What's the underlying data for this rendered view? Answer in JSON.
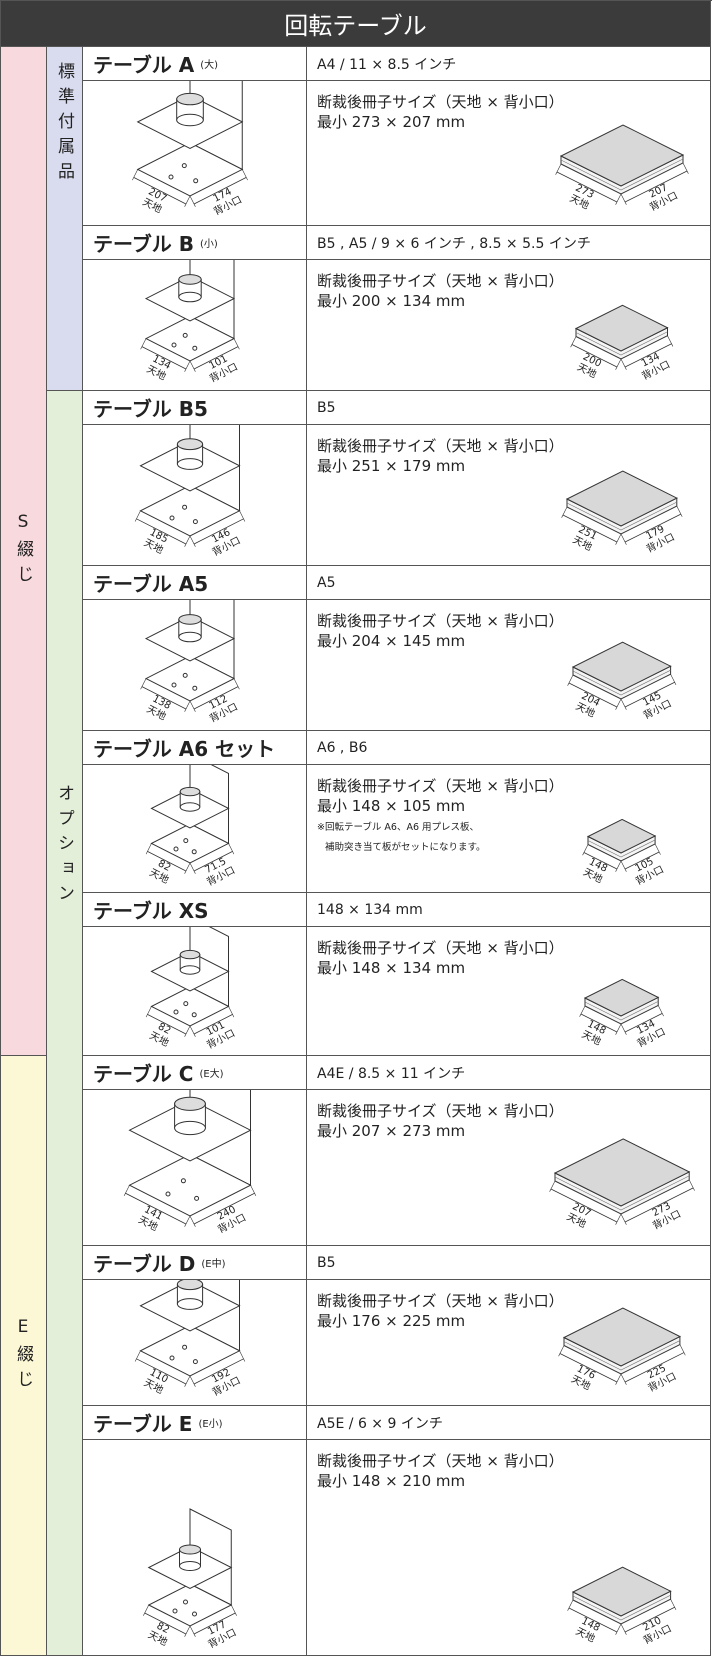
{
  "header": {
    "title": "回転テーブル"
  },
  "groups": [
    {
      "label": "S綴じ"
    },
    {
      "label": "E綴じ"
    }
  ],
  "subgroups": [
    {
      "label": "標準付属品"
    },
    {
      "label": "オプション"
    }
  ],
  "trim_title": "断裁後冊子サイズ（天地 × 背小口）",
  "dim_labels": {
    "height": "天地",
    "width": "背小口"
  },
  "items": [
    {
      "name": "テーブル A",
      "size_note": "(大)",
      "spec": "A4 / 11 × 8.5 インチ",
      "trim_size": "最小 273 × 207 mm",
      "table_dims": [
        207,
        174
      ],
      "book_dims": [
        273,
        207
      ]
    },
    {
      "name": "テーブル B",
      "size_note": "(小)",
      "spec": "B5 , A5 / 9 × 6 インチ , 8.5 × 5.5 インチ",
      "trim_size": "最小 200 × 134 mm",
      "table_dims": [
        134,
        101
      ],
      "book_dims": [
        200,
        134
      ]
    },
    {
      "name": "テーブル B5",
      "spec": "B5",
      "trim_size": "最小 251 × 179 mm",
      "table_dims": [
        185,
        146
      ],
      "book_dims": [
        251,
        179
      ]
    },
    {
      "name": "テーブル A5",
      "spec": "A5",
      "trim_size": "最小 204 × 145 mm",
      "table_dims": [
        138,
        112
      ],
      "book_dims": [
        204,
        145
      ]
    },
    {
      "name": "テーブル A6 セット",
      "spec": "A6 , B6",
      "trim_size": "最小 148 × 105 mm",
      "notes": [
        "※回転テーブル A6、A6 用プレス板、",
        "補助突き当て板がセットになります。"
      ],
      "table_dims": [
        82,
        71.5
      ],
      "book_dims": [
        148,
        105
      ]
    },
    {
      "name": "テーブル XS",
      "spec": "148 × 134 mm",
      "trim_size": "最小 148 × 134 mm",
      "table_dims": [
        82,
        101
      ],
      "book_dims": [
        148,
        134
      ]
    },
    {
      "name": "テーブル C",
      "size_note": "(E大)",
      "spec": "A4E / 8.5 × 11 インチ",
      "trim_size": "最小 207 × 273 mm",
      "table_dims": [
        141,
        240
      ],
      "book_dims": [
        207,
        273
      ]
    },
    {
      "name": "テーブル D",
      "size_note": "(E中)",
      "spec": "B5",
      "trim_size": "最小 176 × 225 mm",
      "table_dims": [
        110,
        192
      ],
      "book_dims": [
        176,
        225
      ]
    },
    {
      "name": "テーブル E",
      "size_note": "(E小)",
      "spec": "A5E / 6 × 9 インチ",
      "trim_size": "最小 148 × 210 mm",
      "table_dims": [
        82,
        177
      ],
      "book_dims": [
        148,
        210
      ]
    }
  ]
}
